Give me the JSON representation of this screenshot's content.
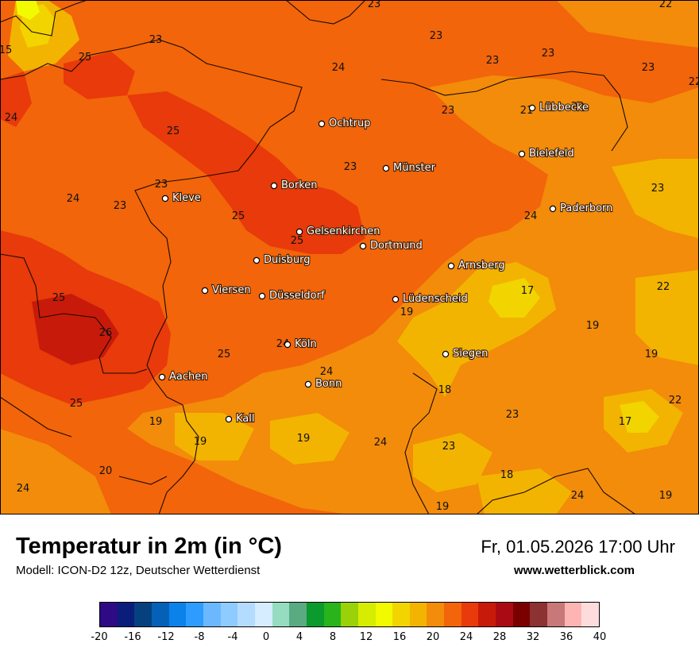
{
  "title": "Temperatur in 2m (in °C)",
  "model": "Modell: ICON-D2 12z, Deutscher Wetterdienst",
  "datetime": "Fr, 01.05.2026 17:00 Uhr",
  "website": "www.wetterblick.com",
  "cities": [
    {
      "name": "Lübbecke"
    },
    {
      "name": "Ochtrup"
    },
    {
      "name": "Bielefeld"
    },
    {
      "name": "Münster"
    },
    {
      "name": "Borken"
    },
    {
      "name": "Kleve"
    },
    {
      "name": "Paderborn"
    },
    {
      "name": "Gelsenkirchen"
    },
    {
      "name": "Dortmund"
    },
    {
      "name": "Duisburg"
    },
    {
      "name": "Arnsberg"
    },
    {
      "name": "Viersen"
    },
    {
      "name": "Düsseldorf"
    },
    {
      "name": "Lüdenscheid"
    },
    {
      "name": "Köln"
    },
    {
      "name": "Siegen"
    },
    {
      "name": "Aachen"
    },
    {
      "name": "Bonn"
    },
    {
      "name": "Kall"
    }
  ],
  "isotherm_labels": [
    "23",
    "22",
    "23",
    "23",
    "23",
    "23",
    "15",
    "25",
    "22",
    "24",
    "23",
    "21",
    "23",
    "24",
    "25",
    "23",
    "24",
    "23",
    "23",
    "25",
    "23",
    "23",
    "24",
    "25",
    "22",
    "17",
    "25",
    "19",
    "19",
    "26",
    "24",
    "25",
    "19",
    "24",
    "18",
    "22",
    "25",
    "23",
    "17",
    "19",
    "19",
    "24",
    "23",
    "20",
    "18",
    "24",
    "24",
    "19",
    "19"
  ],
  "legend": {
    "colors": [
      "#2e0a84",
      "#0a1d7a",
      "#05417f",
      "#0561b8",
      "#0a82ea",
      "#2e9cff",
      "#6cb8ff",
      "#8ecbff",
      "#b4dcff",
      "#d6ecff",
      "#96dcc0",
      "#5aaa82",
      "#0a9a2e",
      "#28b41a",
      "#9ad20a",
      "#d6ec00",
      "#f2fa00",
      "#f2d400",
      "#f2b400",
      "#f28c0a",
      "#f2650a",
      "#e83a0a",
      "#c81a0a",
      "#aa0a14",
      "#7a0000",
      "#8c3232",
      "#c87878",
      "#ffb4b4",
      "#ffdcdc"
    ],
    "ticks": [
      "-20",
      "-16",
      "-12",
      "-8",
      "-4",
      "0",
      "4",
      "8",
      "12",
      "16",
      "20",
      "24",
      "28",
      "32",
      "36",
      "40"
    ]
  }
}
